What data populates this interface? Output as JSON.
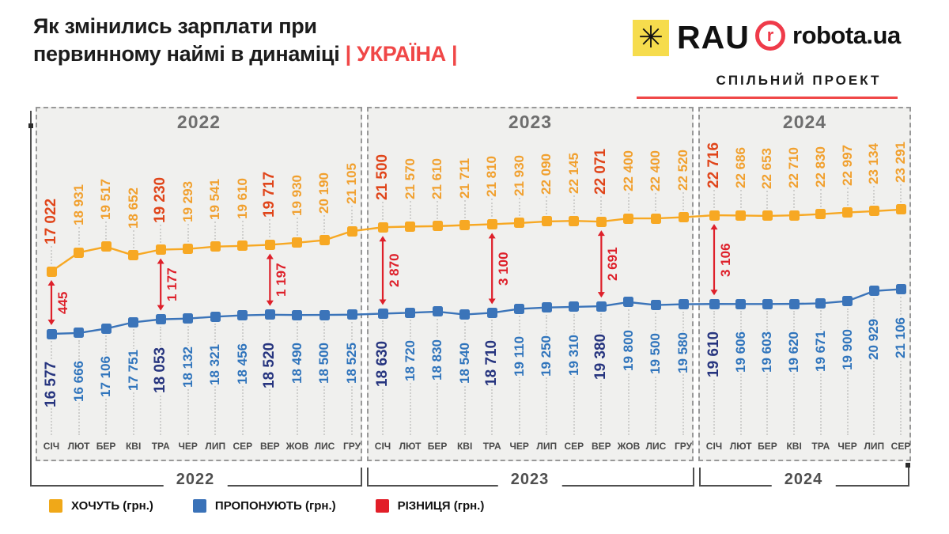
{
  "header": {
    "title_line1": "Як змінились зарплати при",
    "title_line2": "первинному наймі в динаміці",
    "country": "| УКРАЇНА |",
    "rau_logo_text": "RAU",
    "rau_star_icon": "✳",
    "robota_r": "r",
    "robota_logo_text": "robota.ua",
    "joint_project": "СПІЛЬНИЙ ПРОЕКТ"
  },
  "legend": {
    "want": "ХОЧУТЬ (грн.)",
    "offer": "ПРОПОНУЮТЬ (грн.)",
    "diff": "РІЗНИЦЯ (грн.)"
  },
  "colors": {
    "want_line": "#F7A823",
    "want_label": "#F1A02E",
    "want_highlight": "#E0451A",
    "offer_line": "#3B74B9",
    "offer_label": "#2F74BC",
    "offer_highlight": "#27357F",
    "diff_red": "#DE202A",
    "accent_red": "#F04747",
    "legend_want": "#F0A818",
    "legend_offer": "#3A72B8",
    "legend_diff": "#E21E28",
    "chart_bg": "#F0F0EE",
    "year_gray": "#6E6E6E"
  },
  "chart_data": {
    "type": "line",
    "title": "Як змінились зарплати при первинному наймі в динаміці | УКРАЇНА |",
    "unit": "грн.",
    "legend_position": "bottom",
    "series_names": [
      "ХОЧУТЬ (грн.)",
      "ПРОПОНУЮТЬ (грн.)",
      "РІЗНИЦЯ (грн.)"
    ],
    "sections": [
      {
        "year": "2022",
        "months": [
          "СІЧ",
          "ЛЮТ",
          "БЕР",
          "КВІ",
          "ТРА",
          "ЧЕР",
          "ЛИП",
          "СЕР",
          "ВЕР",
          "ЖОВ",
          "ЛИС",
          "ГРУ"
        ],
        "want": [
          17022,
          18931,
          19517,
          18652,
          19230,
          19293,
          19541,
          19610,
          19717,
          19930,
          20190,
          21105
        ],
        "offer": [
          16577,
          16666,
          17106,
          17751,
          18053,
          18132,
          18321,
          18456,
          18520,
          18490,
          18500,
          18525
        ],
        "diffs": [
          {
            "index": 0,
            "value": 445
          },
          {
            "index": 4,
            "value": 1177
          },
          {
            "index": 8,
            "value": 1197
          }
        ],
        "highlight_want": [
          0,
          4,
          8
        ],
        "highlight_offer": [
          0,
          4,
          8
        ]
      },
      {
        "year": "2023",
        "months": [
          "СІЧ",
          "ЛЮТ",
          "БЕР",
          "КВІ",
          "ТРА",
          "ЧЕР",
          "ЛИП",
          "СЕР",
          "ВЕР",
          "ЖОВ",
          "ЛИС",
          "ГРУ"
        ],
        "want": [
          21500,
          21570,
          21610,
          21711,
          21810,
          21930,
          22090,
          22145,
          22071,
          22400,
          22400,
          22520
        ],
        "offer": [
          18630,
          18720,
          18830,
          18540,
          18710,
          19110,
          19250,
          19310,
          19380,
          19800,
          19500,
          19580
        ],
        "diffs": [
          {
            "index": 0,
            "value": 2870
          },
          {
            "index": 4,
            "value": 3100
          },
          {
            "index": 8,
            "value": 2691
          }
        ],
        "highlight_want": [
          0,
          8
        ],
        "highlight_offer": [
          0,
          4,
          8
        ]
      },
      {
        "year": "2024",
        "months": [
          "СІЧ",
          "ЛЮТ",
          "БЕР",
          "КВІ",
          "ТРА",
          "ЧЕР",
          "ЛИП",
          "СЕР"
        ],
        "want": [
          22716,
          22686,
          22653,
          22710,
          22830,
          22997,
          23134,
          23291
        ],
        "offer": [
          19610,
          19606,
          19603,
          19620,
          19671,
          19900,
          20929,
          21106
        ],
        "diffs": [
          {
            "index": 0,
            "value": 3106
          }
        ],
        "highlight_want": [
          0
        ],
        "highlight_offer": [
          0
        ]
      }
    ]
  }
}
